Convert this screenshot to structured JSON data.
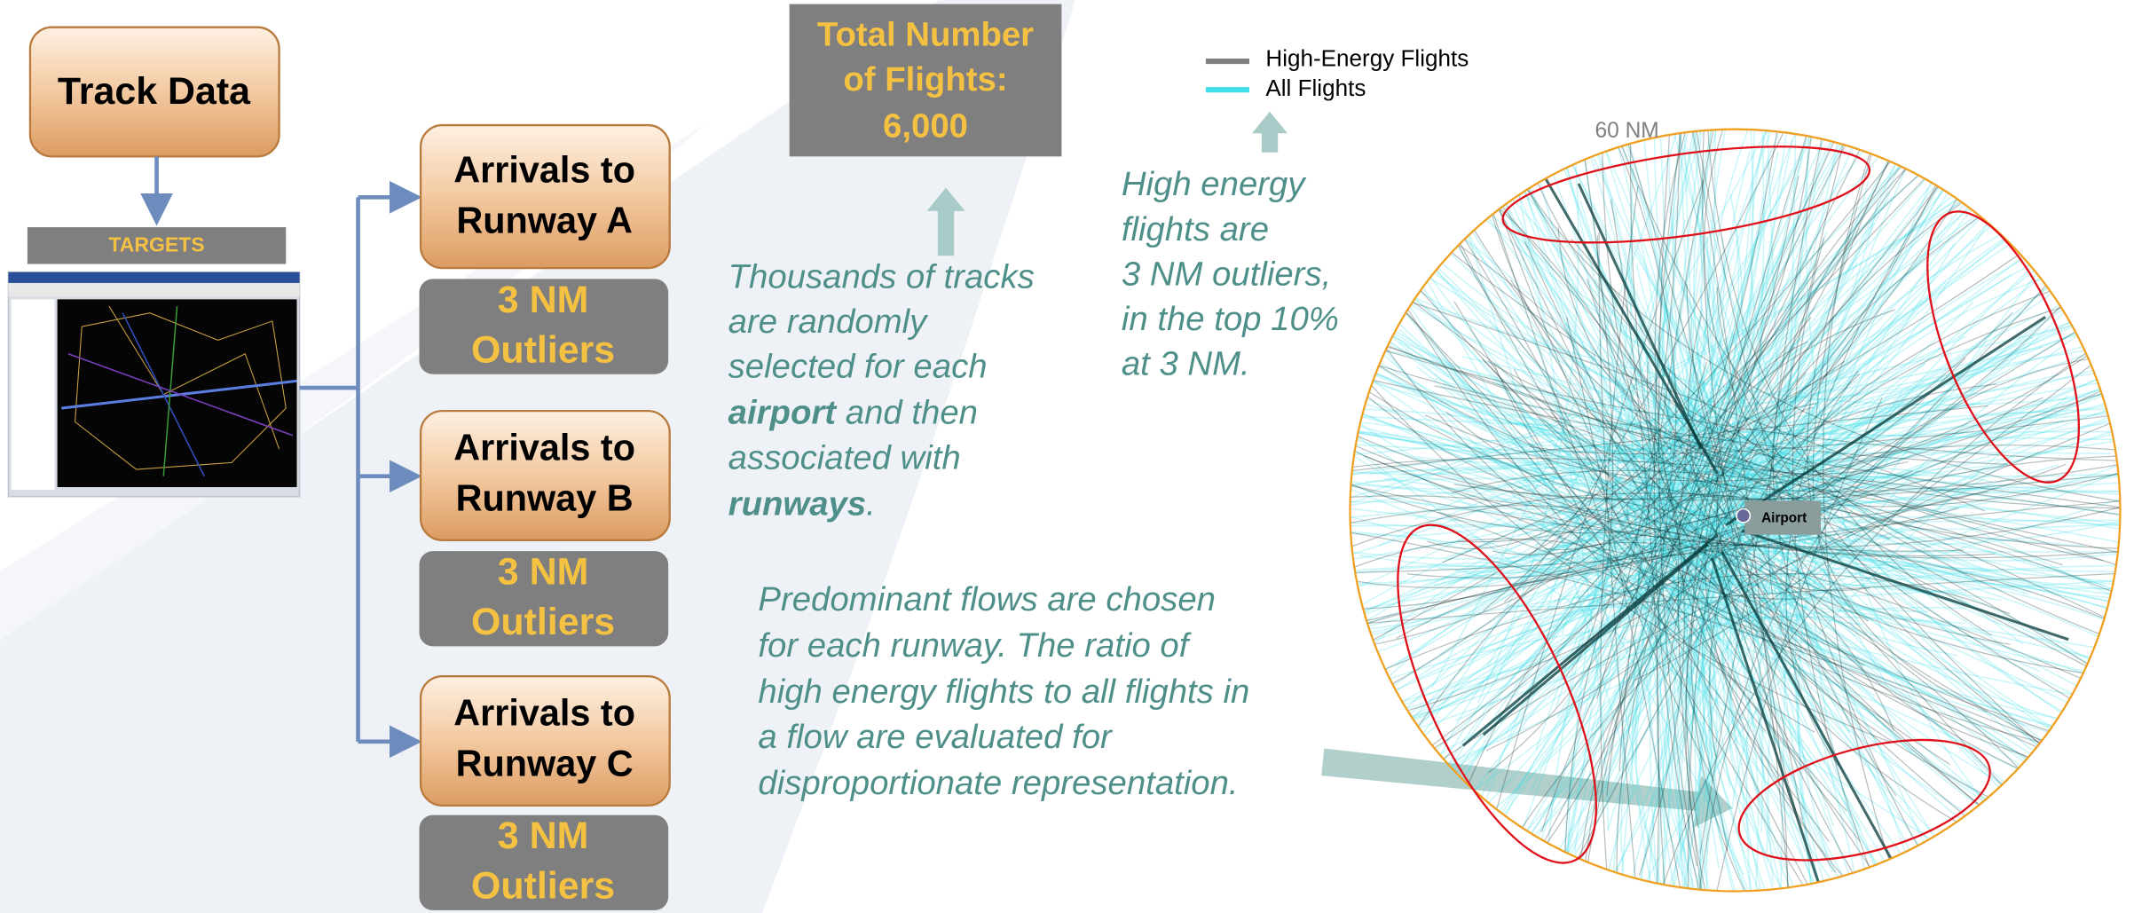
{
  "track_data": {
    "title": "Track Data",
    "targets_label": "TARGETS"
  },
  "runways": [
    {
      "label_lines": [
        "Arrivals to",
        "Runway A"
      ],
      "outliers_lines": [
        "3 NM",
        "Outliers"
      ]
    },
    {
      "label_lines": [
        "Arrivals to",
        "Runway B"
      ],
      "outliers_lines": [
        "3 NM",
        "Outliers"
      ]
    },
    {
      "label_lines": [
        "Arrivals to",
        "Runway C"
      ],
      "outliers_lines": [
        "3 NM",
        "Outliers"
      ]
    }
  ],
  "total_flights": {
    "lines": [
      "Total Number",
      "of Flights:",
      "6,000"
    ]
  },
  "legend": [
    {
      "name": "High-Energy Flights",
      "color": "#808080"
    },
    {
      "name": "All Flights",
      "color": "#3fe0ea"
    }
  ],
  "map": {
    "range_label": "60 NM",
    "airport_label": "Airport"
  },
  "notes": {
    "sampling": {
      "lines": [
        [
          "Thousands of tracks"
        ],
        [
          "are randomly"
        ],
        [
          "selected for each"
        ],
        [
          "airport",
          "and then"
        ],
        [
          "associated with"
        ],
        [
          "runways",
          "."
        ]
      ]
    },
    "high_energy": {
      "lines": [
        "High energy",
        "flights are",
        "3 NM outliers,",
        "in the top 10%",
        "at 3 NM."
      ]
    },
    "flows": {
      "lines": [
        "Predominant flows are chosen",
        "for each runway. The ratio of",
        "high energy flights to all flights in",
        "a flow are evaluated for",
        "disproportionate representation."
      ]
    }
  }
}
